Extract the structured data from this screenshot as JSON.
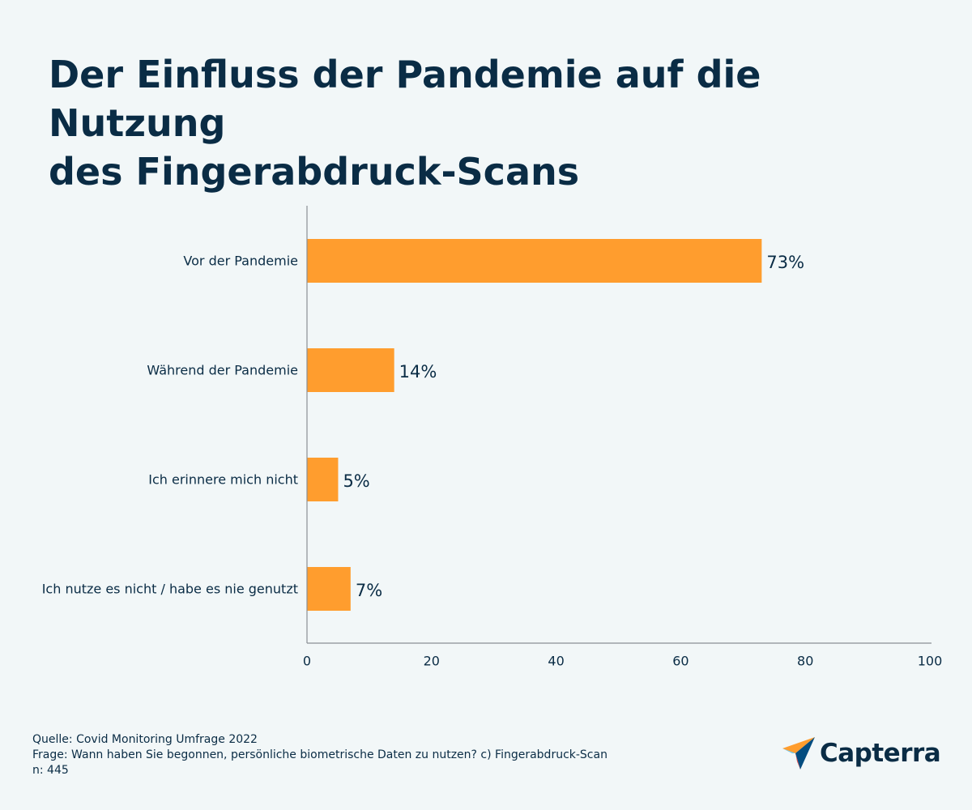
{
  "title_lines": [
    "Der Einfluss der Pandemie auf die Nutzung",
    "des Fingerabdruck-Scans"
  ],
  "chart_data": {
    "type": "bar",
    "orientation": "horizontal",
    "categories": [
      "Vor der Pandemie",
      "Während der Pandemie",
      "Ich erinnere mich nicht",
      "Ich nutze es nicht / habe es nie genutzt"
    ],
    "values": [
      73,
      14,
      5,
      7
    ],
    "data_labels": [
      "73%",
      "14%",
      "5%",
      "7%"
    ],
    "xlim": [
      0,
      100
    ],
    "xticks": [
      "0",
      "20",
      "40",
      "60",
      "80",
      "100"
    ],
    "grid": false,
    "bar_color": "#ff9d2e"
  },
  "footer": {
    "source": "Quelle: Covid Monitoring Umfrage 2022",
    "question": "Frage: Wann haben Sie begonnen, persönliche biometrische Daten zu nutzen? c) Fingerabdruck-Scan",
    "n": "n: 445"
  },
  "logo": {
    "text": "Capterra",
    "icon": "capterra-arrow-icon"
  },
  "colors": {
    "background": "#f2f7f8",
    "text": "#0a2c45",
    "bar": "#ff9d2e",
    "axis": "#8a8f94"
  }
}
